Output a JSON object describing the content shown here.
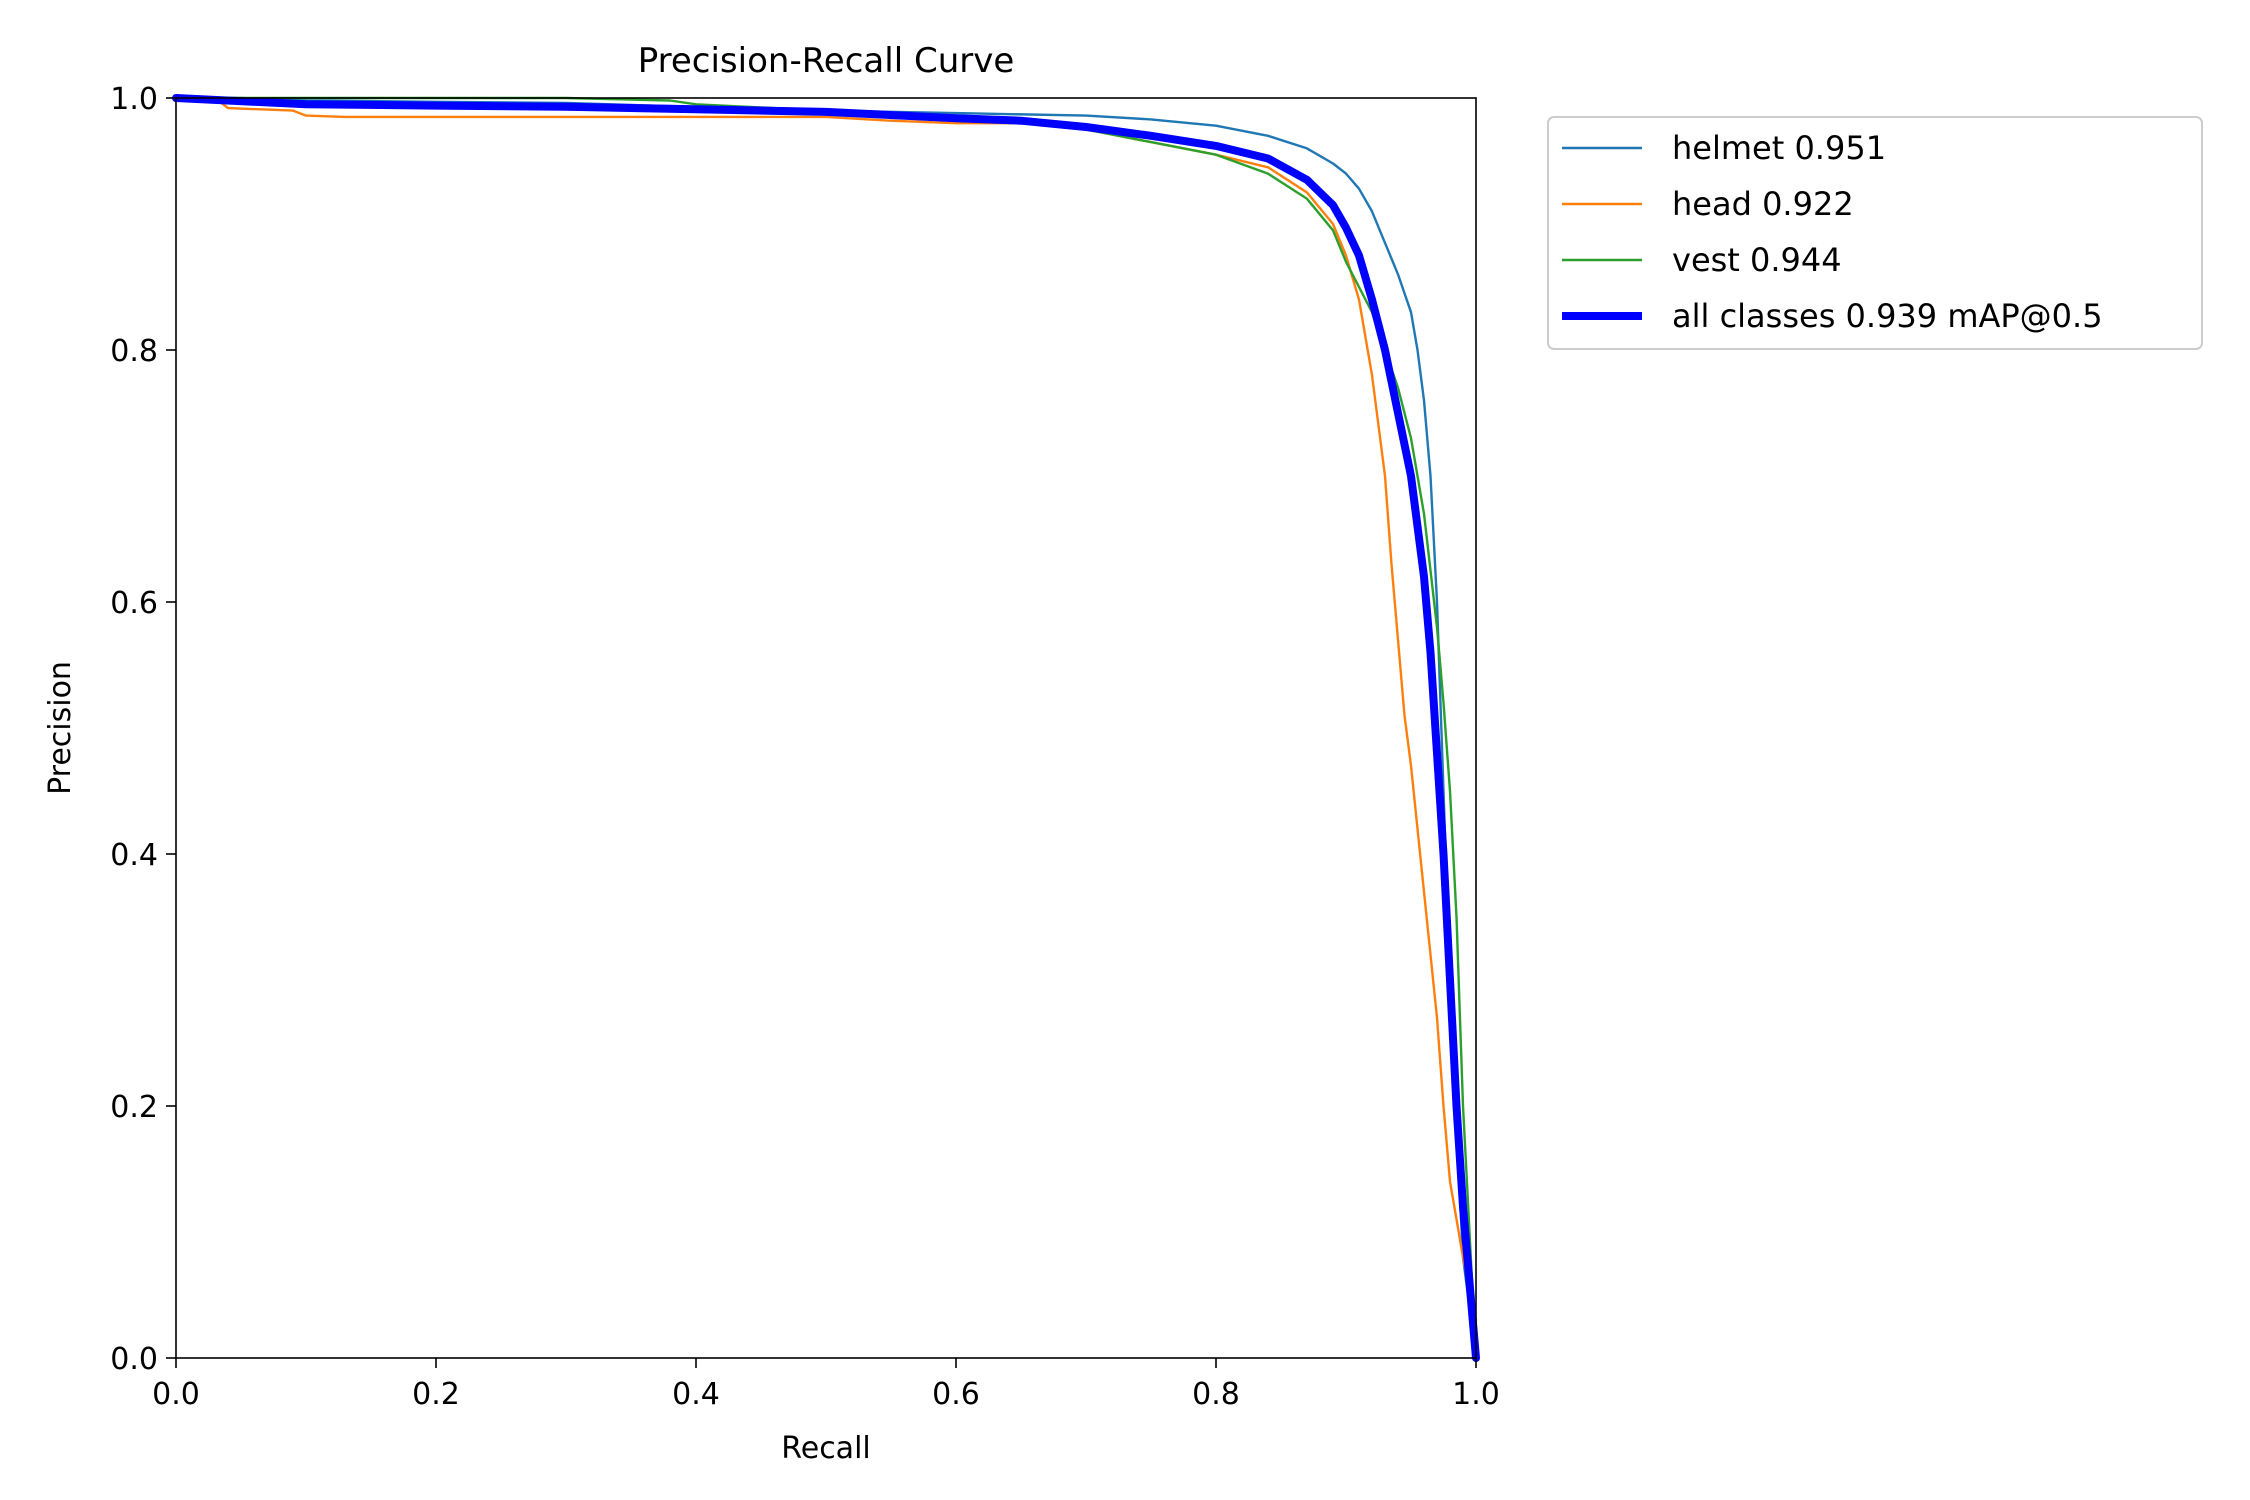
{
  "chart_data": {
    "type": "line",
    "title": "Precision-Recall Curve",
    "xlabel": "Recall",
    "ylabel": "Precision",
    "xlim": [
      0.0,
      1.0
    ],
    "ylim": [
      0.0,
      1.0
    ],
    "xticks": [
      "0.0",
      "0.2",
      "0.4",
      "0.6",
      "0.8",
      "1.0"
    ],
    "yticks": [
      "0.0",
      "0.2",
      "0.4",
      "0.6",
      "0.8",
      "1.0"
    ],
    "grid": false,
    "legend_position": "outside-top-right",
    "series": [
      {
        "name": "helmet 0.951",
        "color": "#1f77b4",
        "weight": "thin",
        "points": [
          [
            0,
            1.0
          ],
          [
            0.05,
            1.0
          ],
          [
            0.1,
            0.998
          ],
          [
            0.2,
            0.997
          ],
          [
            0.3,
            0.996
          ],
          [
            0.4,
            0.993
          ],
          [
            0.5,
            0.99
          ],
          [
            0.6,
            0.988
          ],
          [
            0.7,
            0.986
          ],
          [
            0.75,
            0.983
          ],
          [
            0.8,
            0.978
          ],
          [
            0.84,
            0.97
          ],
          [
            0.87,
            0.96
          ],
          [
            0.89,
            0.948
          ],
          [
            0.9,
            0.94
          ],
          [
            0.91,
            0.928
          ],
          [
            0.92,
            0.91
          ],
          [
            0.93,
            0.885
          ],
          [
            0.94,
            0.86
          ],
          [
            0.95,
            0.83
          ],
          [
            0.955,
            0.8
          ],
          [
            0.96,
            0.76
          ],
          [
            0.965,
            0.7
          ],
          [
            0.97,
            0.6
          ],
          [
            0.975,
            0.45
          ],
          [
            0.98,
            0.3
          ],
          [
            0.985,
            0.18
          ],
          [
            0.99,
            0.08
          ],
          [
            1.0,
            0.0
          ]
        ]
      },
      {
        "name": "head 0.922",
        "color": "#ff7f0e",
        "weight": "thin",
        "points": [
          [
            0,
            1.0
          ],
          [
            0.03,
            1.0
          ],
          [
            0.04,
            0.992
          ],
          [
            0.09,
            0.99
          ],
          [
            0.1,
            0.986
          ],
          [
            0.13,
            0.985
          ],
          [
            0.3,
            0.985
          ],
          [
            0.4,
            0.985
          ],
          [
            0.5,
            0.985
          ],
          [
            0.55,
            0.982
          ],
          [
            0.6,
            0.98
          ],
          [
            0.66,
            0.98
          ],
          [
            0.7,
            0.975
          ],
          [
            0.75,
            0.965
          ],
          [
            0.8,
            0.955
          ],
          [
            0.84,
            0.945
          ],
          [
            0.87,
            0.925
          ],
          [
            0.89,
            0.9
          ],
          [
            0.9,
            0.875
          ],
          [
            0.91,
            0.84
          ],
          [
            0.92,
            0.78
          ],
          [
            0.93,
            0.7
          ],
          [
            0.935,
            0.63
          ],
          [
            0.94,
            0.57
          ],
          [
            0.945,
            0.51
          ],
          [
            0.95,
            0.47
          ],
          [
            0.955,
            0.42
          ],
          [
            0.96,
            0.37
          ],
          [
            0.965,
            0.32
          ],
          [
            0.97,
            0.27
          ],
          [
            0.975,
            0.2
          ],
          [
            0.98,
            0.14
          ],
          [
            0.99,
            0.08
          ],
          [
            1.0,
            0.03
          ]
        ]
      },
      {
        "name": "vest 0.944",
        "color": "#2ca02c",
        "weight": "thin",
        "points": [
          [
            0,
            1.0
          ],
          [
            0.1,
            1.0
          ],
          [
            0.2,
            1.0
          ],
          [
            0.3,
            1.0
          ],
          [
            0.38,
            0.998
          ],
          [
            0.4,
            0.995
          ],
          [
            0.5,
            0.99
          ],
          [
            0.6,
            0.986
          ],
          [
            0.65,
            0.983
          ],
          [
            0.7,
            0.975
          ],
          [
            0.75,
            0.965
          ],
          [
            0.8,
            0.955
          ],
          [
            0.84,
            0.94
          ],
          [
            0.87,
            0.92
          ],
          [
            0.89,
            0.895
          ],
          [
            0.9,
            0.87
          ],
          [
            0.91,
            0.85
          ],
          [
            0.92,
            0.83
          ],
          [
            0.93,
            0.8
          ],
          [
            0.94,
            0.77
          ],
          [
            0.95,
            0.73
          ],
          [
            0.96,
            0.67
          ],
          [
            0.97,
            0.58
          ],
          [
            0.975,
            0.52
          ],
          [
            0.98,
            0.45
          ],
          [
            0.985,
            0.35
          ],
          [
            0.99,
            0.2
          ],
          [
            0.995,
            0.1
          ],
          [
            1.0,
            0.0
          ]
        ]
      },
      {
        "name": "all classes 0.939 mAP@0.5",
        "color": "#0000ff",
        "weight": "thick",
        "points": [
          [
            0,
            1.0
          ],
          [
            0.1,
            0.995
          ],
          [
            0.2,
            0.994
          ],
          [
            0.3,
            0.993
          ],
          [
            0.4,
            0.991
          ],
          [
            0.5,
            0.989
          ],
          [
            0.6,
            0.984
          ],
          [
            0.65,
            0.982
          ],
          [
            0.7,
            0.977
          ],
          [
            0.75,
            0.97
          ],
          [
            0.8,
            0.962
          ],
          [
            0.84,
            0.952
          ],
          [
            0.87,
            0.935
          ],
          [
            0.89,
            0.915
          ],
          [
            0.9,
            0.897
          ],
          [
            0.91,
            0.875
          ],
          [
            0.92,
            0.84
          ],
          [
            0.93,
            0.8
          ],
          [
            0.94,
            0.75
          ],
          [
            0.95,
            0.7
          ],
          [
            0.96,
            0.62
          ],
          [
            0.965,
            0.56
          ],
          [
            0.97,
            0.48
          ],
          [
            0.975,
            0.4
          ],
          [
            0.98,
            0.3
          ],
          [
            0.985,
            0.2
          ],
          [
            0.99,
            0.12
          ],
          [
            1.0,
            0.0
          ]
        ]
      }
    ]
  }
}
